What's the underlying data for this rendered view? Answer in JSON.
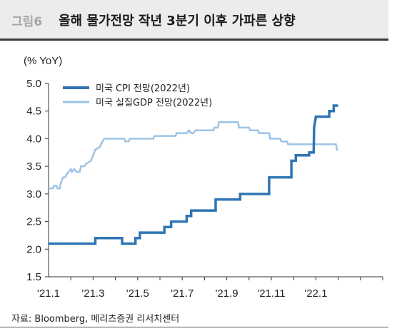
{
  "header": {
    "figure_no": "그림6",
    "title": "올해 물가전망 작년 3분기 이후 가파른 상향"
  },
  "source": "자료: Bloomberg, 메리츠증권 리서치센터",
  "chart_data": {
    "type": "line",
    "y_unit": "(% YoY)",
    "ylim": [
      1.5,
      5.0
    ],
    "yticks": [
      "5.0",
      "4.5",
      "4.0",
      "3.5",
      "3.0",
      "2.5",
      "2.0",
      "1.5"
    ],
    "x_range": [
      0,
      15
    ],
    "xticks": [
      {
        "label": "'21.1",
        "x": 0
      },
      {
        "label": "'21.3",
        "x": 2
      },
      {
        "label": "'21.5",
        "x": 4
      },
      {
        "label": "'21.7",
        "x": 6
      },
      {
        "label": "'21.9",
        "x": 8
      },
      {
        "label": "'21.11",
        "x": 10
      },
      {
        "label": "'22.1",
        "x": 12
      }
    ],
    "legend_position": "top-left",
    "series": [
      {
        "name": "미국 CPI 전망(2022년)",
        "color": "#2f75b5",
        "points": [
          [
            0.0,
            2.1
          ],
          [
            2.1,
            2.1
          ],
          [
            2.1,
            2.2
          ],
          [
            3.3,
            2.2
          ],
          [
            3.3,
            2.1
          ],
          [
            3.9,
            2.1
          ],
          [
            3.9,
            2.2
          ],
          [
            4.1,
            2.2
          ],
          [
            4.1,
            2.3
          ],
          [
            5.2,
            2.3
          ],
          [
            5.2,
            2.4
          ],
          [
            5.5,
            2.4
          ],
          [
            5.5,
            2.5
          ],
          [
            6.2,
            2.5
          ],
          [
            6.2,
            2.6
          ],
          [
            6.4,
            2.6
          ],
          [
            6.4,
            2.7
          ],
          [
            7.5,
            2.7
          ],
          [
            7.5,
            2.9
          ],
          [
            8.6,
            2.9
          ],
          [
            8.6,
            3.0
          ],
          [
            9.9,
            3.0
          ],
          [
            9.9,
            3.3
          ],
          [
            10.9,
            3.3
          ],
          [
            10.9,
            3.6
          ],
          [
            11.1,
            3.6
          ],
          [
            11.1,
            3.7
          ],
          [
            11.7,
            3.7
          ],
          [
            11.7,
            3.75
          ],
          [
            11.9,
            3.75
          ],
          [
            11.92,
            4.2
          ],
          [
            12.0,
            4.4
          ],
          [
            12.6,
            4.4
          ],
          [
            12.6,
            4.5
          ],
          [
            12.8,
            4.5
          ],
          [
            12.8,
            4.6
          ],
          [
            13.0,
            4.6
          ]
        ]
      },
      {
        "name": "미국 실질GDP 전망(2022년)",
        "color": "#9dc3e6",
        "points": [
          [
            0.0,
            3.1
          ],
          [
            0.2,
            3.1
          ],
          [
            0.25,
            3.15
          ],
          [
            0.35,
            3.15
          ],
          [
            0.4,
            3.1
          ],
          [
            0.5,
            3.1
          ],
          [
            0.55,
            3.2
          ],
          [
            0.65,
            3.3
          ],
          [
            0.75,
            3.3
          ],
          [
            0.8,
            3.35
          ],
          [
            0.9,
            3.4
          ],
          [
            1.0,
            3.45
          ],
          [
            1.05,
            3.4
          ],
          [
            1.15,
            3.45
          ],
          [
            1.25,
            3.4
          ],
          [
            1.4,
            3.4
          ],
          [
            1.45,
            3.5
          ],
          [
            1.6,
            3.5
          ],
          [
            1.7,
            3.55
          ],
          [
            1.9,
            3.6
          ],
          [
            2.0,
            3.7
          ],
          [
            2.1,
            3.8
          ],
          [
            2.3,
            3.85
          ],
          [
            2.35,
            3.9
          ],
          [
            2.5,
            4.0
          ],
          [
            3.4,
            4.0
          ],
          [
            3.45,
            3.95
          ],
          [
            3.6,
            3.95
          ],
          [
            3.65,
            4.0
          ],
          [
            4.7,
            4.0
          ],
          [
            4.75,
            4.05
          ],
          [
            5.7,
            4.05
          ],
          [
            5.75,
            4.1
          ],
          [
            6.2,
            4.1
          ],
          [
            6.3,
            4.15
          ],
          [
            6.4,
            4.1
          ],
          [
            6.5,
            4.1
          ],
          [
            6.6,
            4.15
          ],
          [
            7.4,
            4.15
          ],
          [
            7.45,
            4.2
          ],
          [
            7.6,
            4.2
          ],
          [
            7.65,
            4.3
          ],
          [
            8.5,
            4.3
          ],
          [
            8.55,
            4.2
          ],
          [
            9.0,
            4.2
          ],
          [
            9.05,
            4.15
          ],
          [
            9.4,
            4.15
          ],
          [
            9.45,
            4.1
          ],
          [
            9.9,
            4.1
          ],
          [
            9.95,
            4.0
          ],
          [
            10.4,
            4.0
          ],
          [
            10.45,
            3.95
          ],
          [
            10.7,
            3.95
          ],
          [
            10.75,
            3.9
          ],
          [
            12.9,
            3.9
          ],
          [
            12.95,
            3.8
          ],
          [
            13.0,
            3.8
          ]
        ]
      }
    ]
  }
}
